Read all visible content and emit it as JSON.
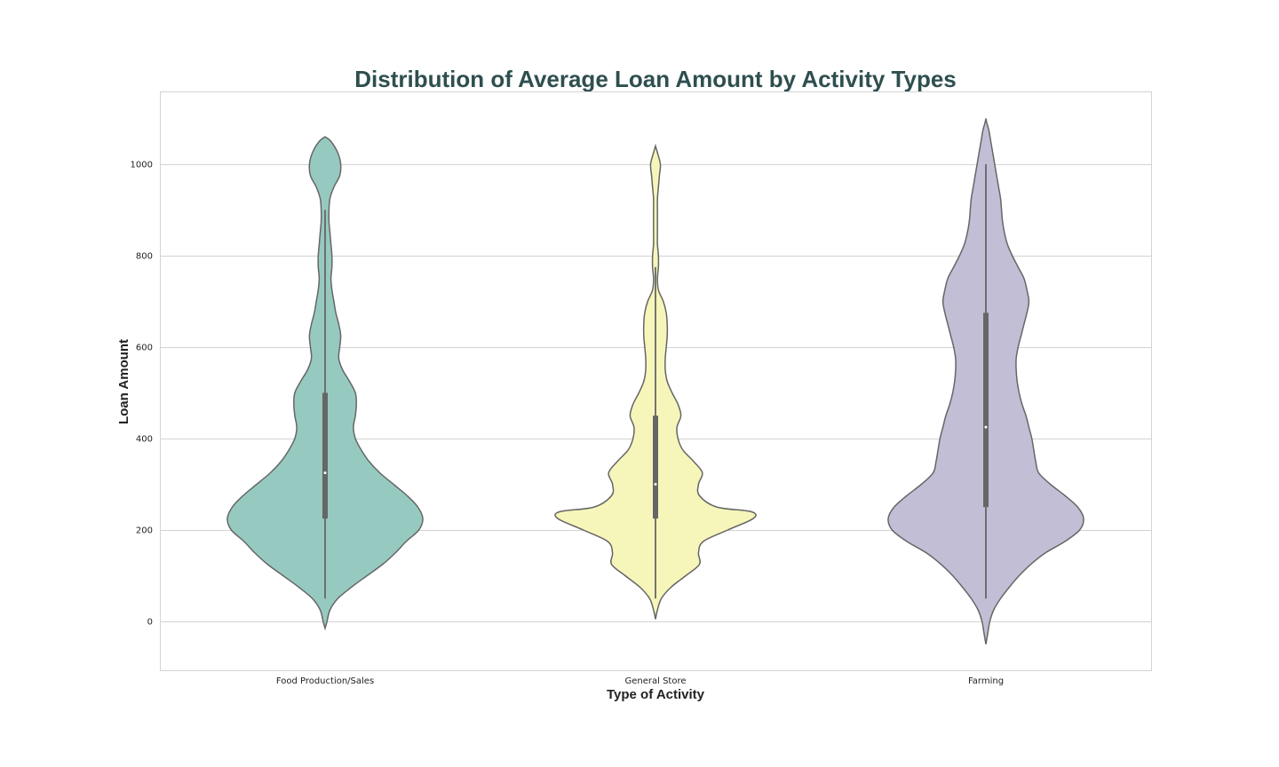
{
  "chart_data": {
    "type": "violin",
    "title": "Distribution of Average Loan Amount by Activity Types",
    "xlabel": "Type of Activity",
    "ylabel": "Loan Amount",
    "ylim": [
      -108,
      1160
    ],
    "yticks": [
      0,
      200,
      400,
      600,
      800,
      1000
    ],
    "grid": true,
    "categories": [
      "Food Production/Sales",
      "General Store",
      "Farming"
    ],
    "series": [
      {
        "category": "Food Production/Sales",
        "color": "#96cac0",
        "whisker": [
          50,
          900
        ],
        "q1": 225,
        "median": 325,
        "q3": 500,
        "density": [
          [
            -15,
            0.0
          ],
          [
            0,
            0.02
          ],
          [
            25,
            0.05
          ],
          [
            50,
            0.13
          ],
          [
            75,
            0.27
          ],
          [
            100,
            0.43
          ],
          [
            125,
            0.59
          ],
          [
            150,
            0.72
          ],
          [
            175,
            0.83
          ],
          [
            200,
            0.96
          ],
          [
            225,
            1.0
          ],
          [
            250,
            0.95
          ],
          [
            275,
            0.84
          ],
          [
            300,
            0.7
          ],
          [
            325,
            0.56
          ],
          [
            350,
            0.45
          ],
          [
            375,
            0.37
          ],
          [
            400,
            0.31
          ],
          [
            425,
            0.29
          ],
          [
            450,
            0.31
          ],
          [
            475,
            0.32
          ],
          [
            500,
            0.31
          ],
          [
            525,
            0.25
          ],
          [
            550,
            0.18
          ],
          [
            575,
            0.14
          ],
          [
            600,
            0.15
          ],
          [
            625,
            0.16
          ],
          [
            650,
            0.14
          ],
          [
            675,
            0.11
          ],
          [
            700,
            0.09
          ],
          [
            725,
            0.07
          ],
          [
            750,
            0.06
          ],
          [
            775,
            0.07
          ],
          [
            800,
            0.07
          ],
          [
            825,
            0.06
          ],
          [
            850,
            0.05
          ],
          [
            875,
            0.04
          ],
          [
            900,
            0.04
          ],
          [
            925,
            0.05
          ],
          [
            950,
            0.09
          ],
          [
            975,
            0.15
          ],
          [
            1000,
            0.16
          ],
          [
            1025,
            0.13
          ],
          [
            1050,
            0.06
          ],
          [
            1060,
            0.0
          ]
        ]
      },
      {
        "category": "General Store",
        "color": "#f6f6ba",
        "whisker": [
          50,
          775
        ],
        "q1": 225,
        "median": 300,
        "q3": 450,
        "density": [
          [
            5,
            0.0
          ],
          [
            25,
            0.02
          ],
          [
            50,
            0.06
          ],
          [
            75,
            0.16
          ],
          [
            100,
            0.31
          ],
          [
            125,
            0.45
          ],
          [
            150,
            0.44
          ],
          [
            175,
            0.49
          ],
          [
            200,
            0.74
          ],
          [
            225,
            1.0
          ],
          [
            240,
            0.98
          ],
          [
            250,
            0.63
          ],
          [
            275,
            0.45
          ],
          [
            300,
            0.44
          ],
          [
            325,
            0.48
          ],
          [
            350,
            0.39
          ],
          [
            375,
            0.28
          ],
          [
            400,
            0.23
          ],
          [
            425,
            0.22
          ],
          [
            450,
            0.26
          ],
          [
            475,
            0.23
          ],
          [
            500,
            0.17
          ],
          [
            525,
            0.12
          ],
          [
            550,
            0.1
          ],
          [
            575,
            0.1
          ],
          [
            600,
            0.11
          ],
          [
            625,
            0.12
          ],
          [
            650,
            0.12
          ],
          [
            675,
            0.11
          ],
          [
            700,
            0.08
          ],
          [
            725,
            0.03
          ],
          [
            750,
            0.02
          ],
          [
            775,
            0.03
          ],
          [
            800,
            0.03
          ],
          [
            825,
            0.02
          ],
          [
            850,
            0.02
          ],
          [
            875,
            0.02
          ],
          [
            900,
            0.02
          ],
          [
            925,
            0.02
          ],
          [
            950,
            0.03
          ],
          [
            975,
            0.04
          ],
          [
            1000,
            0.05
          ],
          [
            1025,
            0.02
          ],
          [
            1040,
            0.0
          ]
        ]
      },
      {
        "category": "Farming",
        "color": "#c2bed6",
        "whisker": [
          50,
          1000
        ],
        "q1": 250,
        "median": 425,
        "q3": 675,
        "density": [
          [
            -50,
            0.0
          ],
          [
            -25,
            0.02
          ],
          [
            0,
            0.04
          ],
          [
            25,
            0.08
          ],
          [
            50,
            0.15
          ],
          [
            75,
            0.24
          ],
          [
            100,
            0.34
          ],
          [
            125,
            0.46
          ],
          [
            150,
            0.61
          ],
          [
            175,
            0.81
          ],
          [
            200,
            0.96
          ],
          [
            225,
            1.0
          ],
          [
            250,
            0.94
          ],
          [
            275,
            0.81
          ],
          [
            300,
            0.66
          ],
          [
            325,
            0.54
          ],
          [
            350,
            0.51
          ],
          [
            375,
            0.49
          ],
          [
            400,
            0.47
          ],
          [
            425,
            0.44
          ],
          [
            450,
            0.41
          ],
          [
            475,
            0.37
          ],
          [
            500,
            0.34
          ],
          [
            525,
            0.32
          ],
          [
            550,
            0.31
          ],
          [
            575,
            0.31
          ],
          [
            600,
            0.33
          ],
          [
            625,
            0.36
          ],
          [
            650,
            0.39
          ],
          [
            675,
            0.42
          ],
          [
            700,
            0.44
          ],
          [
            725,
            0.42
          ],
          [
            750,
            0.39
          ],
          [
            775,
            0.33
          ],
          [
            800,
            0.27
          ],
          [
            825,
            0.22
          ],
          [
            850,
            0.19
          ],
          [
            875,
            0.17
          ],
          [
            900,
            0.16
          ],
          [
            925,
            0.15
          ],
          [
            950,
            0.13
          ],
          [
            975,
            0.11
          ],
          [
            1000,
            0.09
          ],
          [
            1025,
            0.07
          ],
          [
            1050,
            0.05
          ],
          [
            1075,
            0.03
          ],
          [
            1090,
            0.01
          ],
          [
            1100,
            0.0
          ]
        ]
      }
    ]
  }
}
